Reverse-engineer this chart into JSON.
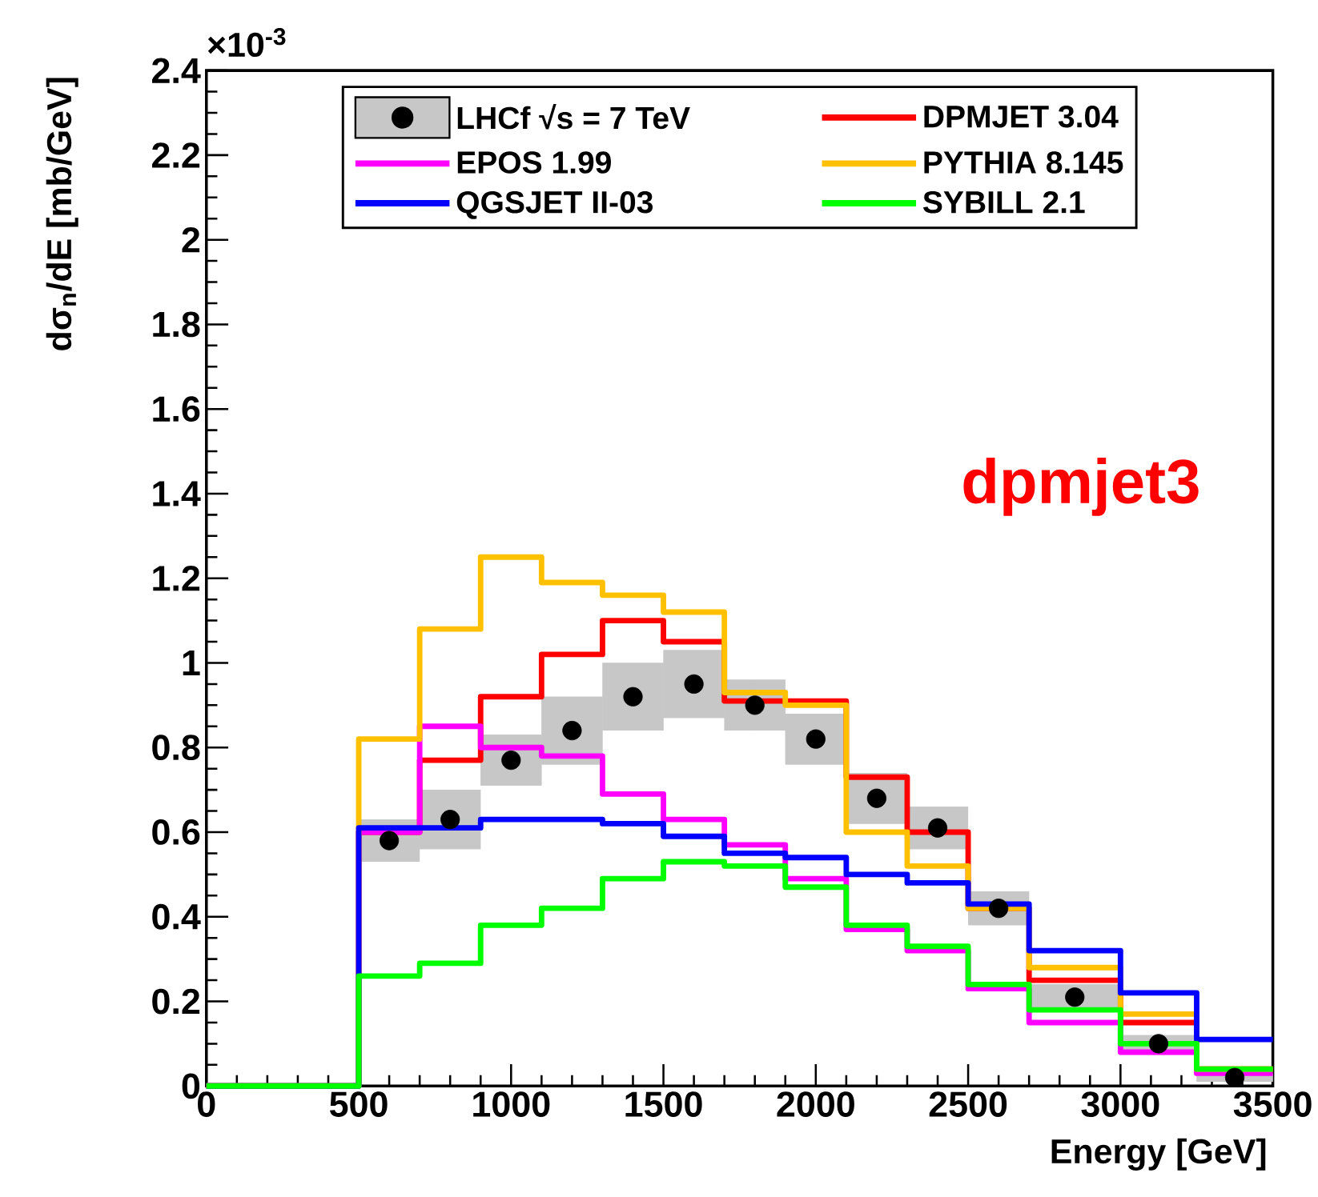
{
  "chart_data": {
    "type": "histogram",
    "xlabel": "Energy [GeV]",
    "ylabel": "dσ$_{n}$/dE [mb/GeV]",
    "annotations": [
      "×10$^{-3}$",
      "dpmjet3"
    ],
    "bins": [
      0,
      500,
      700,
      900,
      1100,
      1300,
      1500,
      1700,
      1900,
      2100,
      2300,
      2500,
      2700,
      3000,
      3250,
      3500
    ],
    "series": [
      {
        "name": "LHCf √s = 7 TeV",
        "type": "scatter",
        "marker": "circle",
        "color": "#000000",
        "x": [
          600,
          800,
          1000,
          1200,
          1400,
          1600,
          1800,
          2000,
          2200,
          2400,
          2600,
          2850,
          3125,
          3375
        ],
        "values": [
          0.58,
          0.63,
          0.77,
          0.84,
          0.92,
          0.95,
          0.9,
          0.82,
          0.68,
          0.61,
          0.42,
          0.21,
          0.1,
          0.02
        ],
        "errors": [
          0.05,
          0.07,
          0.06,
          0.08,
          0.08,
          0.08,
          0.06,
          0.06,
          0.06,
          0.05,
          0.04,
          0.03,
          0.02,
          0.01
        ],
        "xerrors": [
          100,
          100,
          100,
          100,
          100,
          100,
          100,
          100,
          100,
          100,
          100,
          150,
          125,
          125
        ]
      },
      {
        "name": "DPMJET 3.04",
        "color": "#ff0000",
        "values": [
          0,
          0.6,
          0.77,
          0.92,
          1.02,
          1.1,
          1.05,
          0.91,
          0.91,
          0.73,
          0.6,
          0.42,
          0.25,
          0.15,
          0.04
        ]
      },
      {
        "name": "EPOS 1.99",
        "color": "#ff00ff",
        "values": [
          0,
          0.6,
          0.85,
          0.8,
          0.78,
          0.69,
          0.63,
          0.57,
          0.49,
          0.37,
          0.32,
          0.23,
          0.15,
          0.08,
          0.03
        ]
      },
      {
        "name": "PYTHIA 8.145",
        "color": "#ffc000",
        "values": [
          0,
          0.82,
          1.08,
          1.25,
          1.19,
          1.16,
          1.12,
          0.93,
          0.9,
          0.6,
          0.52,
          0.42,
          0.28,
          0.17,
          0.04
        ]
      },
      {
        "name": "QGSJET II-03",
        "color": "#0000ff",
        "values": [
          0,
          0.61,
          0.61,
          0.63,
          0.63,
          0.62,
          0.59,
          0.55,
          0.54,
          0.5,
          0.48,
          0.43,
          0.32,
          0.22,
          0.11
        ]
      },
      {
        "name": "SYBILL 2.1",
        "color": "#00ff00",
        "values": [
          0,
          0.26,
          0.29,
          0.38,
          0.42,
          0.49,
          0.53,
          0.52,
          0.47,
          0.38,
          0.33,
          0.24,
          0.18,
          0.1,
          0.04
        ]
      }
    ],
    "xlim": [
      0,
      3500
    ],
    "xticks": [
      0,
      500,
      1000,
      1500,
      2000,
      2500,
      3000,
      3500
    ],
    "ylim": [
      0,
      2.4
    ],
    "yticks": [
      0,
      0.2,
      0.4,
      0.6,
      0.8,
      1,
      1.2,
      1.4,
      1.6,
      1.8,
      2,
      2.2,
      2.4
    ],
    "legend": "top",
    "grid": false
  }
}
